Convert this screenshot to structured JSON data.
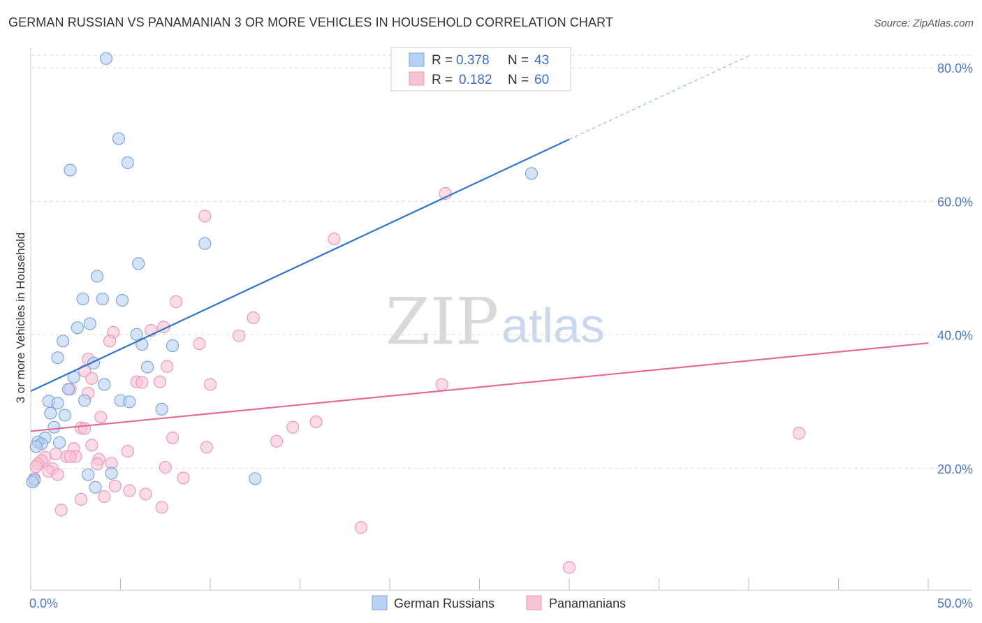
{
  "title": "GERMAN RUSSIAN VS PANAMANIAN 3 OR MORE VEHICLES IN HOUSEHOLD CORRELATION CHART",
  "source": "Source: ZipAtlas.com",
  "watermark": {
    "zip": "ZIP",
    "atlas": "atlas"
  },
  "colors": {
    "blue_fill": "#b7d0f3",
    "blue_stroke": "#7ea6de",
    "blue_line": "#2e75d0",
    "pink_fill": "#f8c3d4",
    "pink_stroke": "#ee9ab6",
    "pink_line": "#e46b97",
    "grid": "#dddddd",
    "tick_text": "#4a78c8"
  },
  "legend": {
    "rows": [
      {
        "r_label": "R =",
        "r_value": "0.378",
        "n_label": "N =",
        "n_value": "43",
        "series": "blue"
      },
      {
        "r_label": "R =",
        "r_value": "0.182",
        "n_label": "N =",
        "n_value": "60",
        "series": "pink"
      }
    ]
  },
  "chart_data": {
    "type": "scatter",
    "title": "GERMAN RUSSIAN VS PANAMANIAN 3 OR MORE VEHICLES IN HOUSEHOLD CORRELATION CHART",
    "xlabel": "",
    "ylabel": "3 or more Vehicles in Household",
    "xlim": [
      0,
      50
    ],
    "ylim": [
      0,
      80
    ],
    "x_tick_labels": [
      "0.0%",
      "50.0%"
    ],
    "y_tick_labels": [
      "20.0%",
      "40.0%",
      "60.0%",
      "80.0%"
    ],
    "y_ticks": [
      20,
      40,
      60,
      80
    ],
    "grid": true,
    "legend_position": "top-center",
    "series": [
      {
        "name": "German Russians",
        "color": "#b7d0f3",
        "R": 0.378,
        "N": 43,
        "trend": {
          "x": [
            0,
            30
          ],
          "y": [
            29.8,
            67.5
          ],
          "dashed_to": [
            40,
            80
          ]
        },
        "points": [
          [
            4.2,
            79.6
          ],
          [
            4.9,
            67.6
          ],
          [
            5.4,
            64.0
          ],
          [
            2.2,
            62.9
          ],
          [
            27.9,
            62.4
          ],
          [
            9.7,
            51.9
          ],
          [
            6.0,
            48.9
          ],
          [
            3.7,
            47.0
          ],
          [
            2.9,
            43.6
          ],
          [
            4.0,
            43.6
          ],
          [
            5.1,
            43.4
          ],
          [
            3.3,
            39.9
          ],
          [
            2.6,
            39.3
          ],
          [
            5.9,
            38.3
          ],
          [
            1.8,
            37.3
          ],
          [
            6.2,
            36.8
          ],
          [
            7.9,
            36.6
          ],
          [
            1.5,
            34.8
          ],
          [
            3.5,
            34.0
          ],
          [
            6.5,
            33.4
          ],
          [
            2.4,
            31.9
          ],
          [
            4.1,
            30.8
          ],
          [
            2.1,
            30.1
          ],
          [
            1.0,
            28.3
          ],
          [
            5.0,
            28.4
          ],
          [
            5.5,
            28.2
          ],
          [
            3.0,
            28.4
          ],
          [
            1.5,
            28.0
          ],
          [
            7.3,
            27.1
          ],
          [
            1.1,
            26.5
          ],
          [
            1.9,
            26.2
          ],
          [
            1.3,
            24.4
          ],
          [
            0.8,
            22.8
          ],
          [
            0.4,
            22.2
          ],
          [
            1.6,
            22.1
          ],
          [
            0.6,
            21.9
          ],
          [
            0.3,
            21.5
          ],
          [
            3.2,
            17.3
          ],
          [
            4.5,
            17.5
          ],
          [
            12.5,
            16.7
          ],
          [
            0.2,
            16.5
          ],
          [
            0.1,
            16.2
          ],
          [
            3.6,
            15.4
          ]
        ]
      },
      {
        "name": "Panamanians",
        "color": "#f8c3d4",
        "R": 0.182,
        "N": 60,
        "trend": {
          "x": [
            0,
            50
          ],
          "y": [
            23.8,
            37.0
          ]
        },
        "points": [
          [
            23.1,
            59.4
          ],
          [
            9.7,
            56.0
          ],
          [
            16.9,
            52.6
          ],
          [
            8.1,
            43.2
          ],
          [
            12.4,
            40.8
          ],
          [
            7.4,
            39.4
          ],
          [
            6.7,
            38.9
          ],
          [
            4.6,
            38.6
          ],
          [
            11.6,
            38.1
          ],
          [
            4.4,
            37.3
          ],
          [
            9.4,
            36.9
          ],
          [
            3.2,
            34.6
          ],
          [
            7.6,
            33.5
          ],
          [
            3.0,
            32.8
          ],
          [
            3.4,
            31.7
          ],
          [
            5.9,
            31.2
          ],
          [
            6.2,
            31.1
          ],
          [
            7.2,
            31.2
          ],
          [
            10.0,
            30.8
          ],
          [
            22.9,
            30.8
          ],
          [
            2.2,
            30.1
          ],
          [
            3.2,
            29.5
          ],
          [
            3.9,
            25.9
          ],
          [
            15.9,
            25.2
          ],
          [
            14.6,
            24.4
          ],
          [
            2.8,
            24.3
          ],
          [
            3.0,
            24.2
          ],
          [
            7.9,
            22.8
          ],
          [
            13.7,
            22.3
          ],
          [
            3.4,
            21.7
          ],
          [
            9.8,
            21.4
          ],
          [
            2.4,
            21.2
          ],
          [
            5.4,
            20.8
          ],
          [
            1.4,
            20.4
          ],
          [
            2.0,
            20.0
          ],
          [
            2.5,
            20.0
          ],
          [
            2.2,
            20.0
          ],
          [
            0.8,
            19.9
          ],
          [
            3.8,
            19.6
          ],
          [
            0.6,
            19.4
          ],
          [
            0.4,
            18.9
          ],
          [
            4.5,
            19.0
          ],
          [
            3.7,
            18.9
          ],
          [
            0.3,
            18.5
          ],
          [
            1.2,
            18.2
          ],
          [
            1.0,
            17.8
          ],
          [
            7.5,
            18.4
          ],
          [
            1.5,
            17.3
          ],
          [
            0.2,
            16.7
          ],
          [
            8.5,
            16.8
          ],
          [
            4.7,
            15.6
          ],
          [
            5.5,
            14.9
          ],
          [
            6.4,
            14.4
          ],
          [
            4.1,
            14.0
          ],
          [
            2.8,
            13.6
          ],
          [
            7.3,
            12.4
          ],
          [
            1.7,
            12.0
          ],
          [
            18.4,
            9.4
          ],
          [
            30.0,
            3.4
          ],
          [
            42.8,
            23.5
          ]
        ]
      }
    ]
  }
}
